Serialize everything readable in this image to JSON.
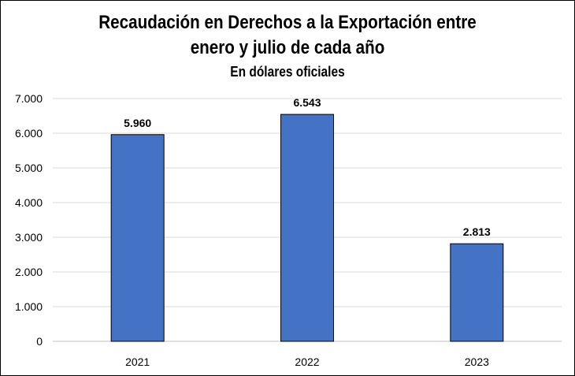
{
  "chart_data": {
    "type": "bar",
    "title": "Recaudación en Derechos a la Exportación entre enero y julio de cada año",
    "title_lines": [
      "Recaudación en Derechos a la Exportación entre",
      "enero y julio de cada año"
    ],
    "subtitle": "En dólares oficiales",
    "categories": [
      "2021",
      "2022",
      "2023"
    ],
    "values": [
      5960,
      6543,
      2813
    ],
    "data_labels": [
      "5.960",
      "6.543",
      "2.813"
    ],
    "ylim": [
      0,
      7000
    ],
    "yticks": [
      0,
      1000,
      2000,
      3000,
      4000,
      5000,
      6000,
      7000
    ],
    "ytick_labels": [
      "0",
      "1.000",
      "2.000",
      "3.000",
      "4.000",
      "5.000",
      "6.000",
      "7.000"
    ],
    "xlabel": "",
    "ylabel": "",
    "grid": true,
    "legend": "none",
    "bar_color": "#4472C4"
  }
}
